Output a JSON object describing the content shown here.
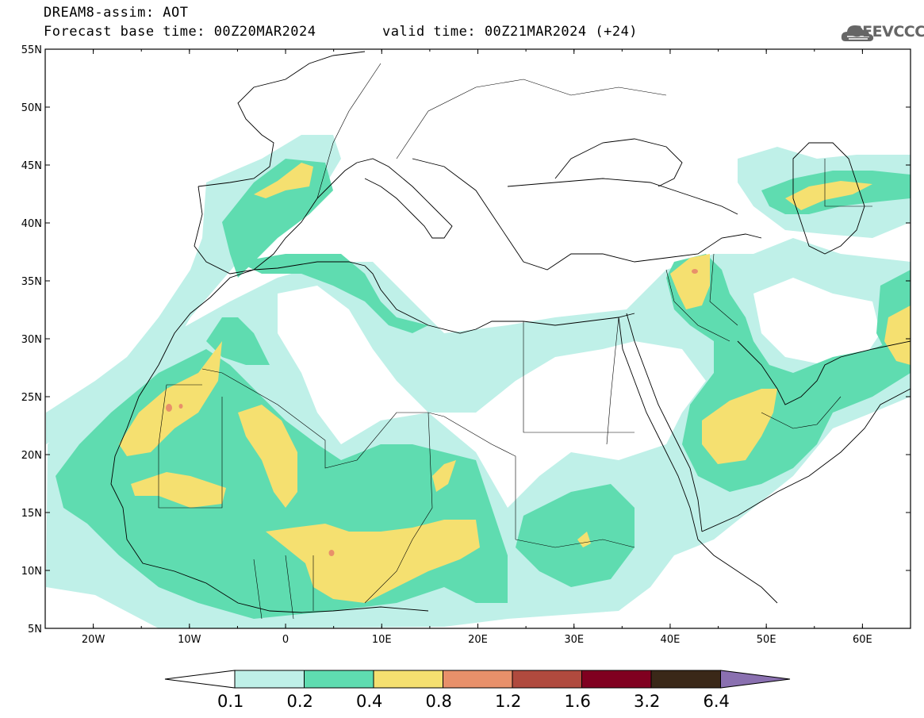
{
  "header": {
    "title": "DREAM8-assim: AOT",
    "base_time_text": "Forecast base time: 00Z20MAR2024",
    "valid_time_text": "valid time: 00Z21MAR2024 (+24)",
    "logo_text": "SEEVCCC"
  },
  "map": {
    "lat_labels": [
      "55N",
      "50N",
      "45N",
      "40N",
      "35N",
      "30N",
      "25N",
      "20N",
      "15N",
      "10N",
      "5N"
    ],
    "lon_labels": [
      "20W",
      "10W",
      "0",
      "10E",
      "20E",
      "30E",
      "40E",
      "50E",
      "60E"
    ],
    "lon_range": [
      -25,
      65
    ],
    "lat_range": [
      5,
      55
    ]
  },
  "colorbar": {
    "levels": [
      "0.1",
      "0.2",
      "0.4",
      "0.8",
      "1.2",
      "1.6",
      "3.2",
      "6.4"
    ],
    "colors": [
      "#ffffff",
      "#bff0e8",
      "#5fdcb0",
      "#f5e070",
      "#e8906a",
      "#b04a3e",
      "#800020",
      "#3a2818",
      "#8a70b0"
    ]
  }
}
